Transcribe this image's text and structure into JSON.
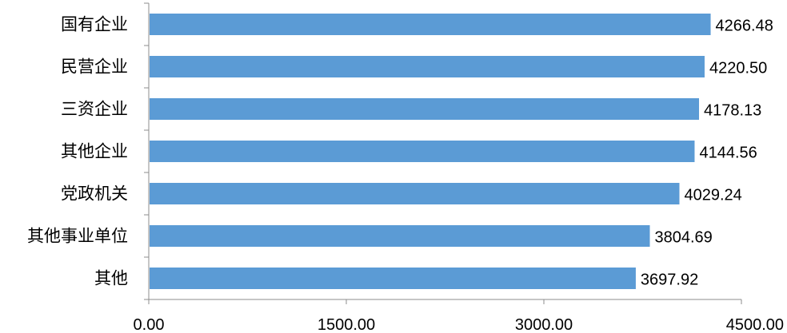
{
  "chart_data": {
    "type": "bar",
    "orientation": "horizontal",
    "categories": [
      "国有企业",
      "民营企业",
      "三资企业",
      "其他企业",
      "党政机关",
      "其他事业单位",
      "其他"
    ],
    "values": [
      4266.48,
      4220.5,
      4178.13,
      4144.56,
      4029.24,
      3804.69,
      3697.92
    ],
    "value_labels": [
      "4266.48",
      "4220.50",
      "4178.13",
      "4144.56",
      "4029.24",
      "3804.69",
      "3697.92"
    ],
    "x_ticks": [
      "0.00",
      "1500.00",
      "3000.00",
      "4500.00"
    ],
    "xlim": [
      0,
      4500
    ],
    "title": "",
    "xlabel": "",
    "ylabel": "",
    "grid": false,
    "legend": "none",
    "bar_color": "#5B9BD5"
  }
}
